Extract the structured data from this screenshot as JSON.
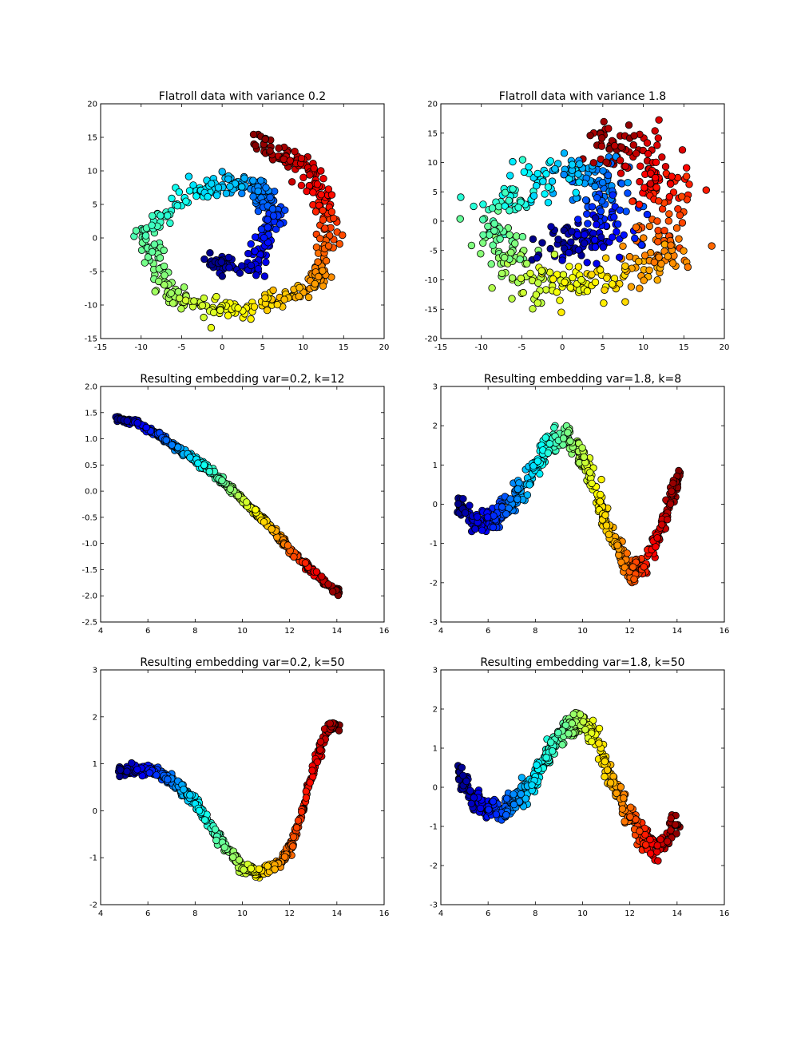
{
  "colormap": "jet",
  "chart_data": [
    {
      "type": "scatter",
      "title": "Flatroll data with variance 0.2",
      "xlabel": "",
      "ylabel": "",
      "xlim": [
        -15,
        20
      ],
      "ylim": [
        -15,
        20
      ],
      "xticks": [
        -15,
        -10,
        -5,
        0,
        5,
        10,
        15,
        20
      ],
      "yticks": [
        -15,
        -10,
        -5,
        0,
        5,
        10,
        15,
        20
      ],
      "color_encoding": "jet colormap along the spiral parameter t (blue = 0 at inner end, red = 1 at outer end)",
      "grid": false,
      "legend": "none",
      "spiral_curve": {
        "t": [
          0,
          0.125,
          0.25,
          0.375,
          0.5,
          0.625,
          0.75,
          0.875,
          1.0
        ],
        "x": [
          -1.5,
          4.0,
          6.5,
          4.0,
          -3.0,
          -9.5,
          -6.0,
          3.0,
          11.5
        ],
        "y": [
          -3.5,
          -4.5,
          3.5,
          8.0,
          7.5,
          0.5,
          -9.5,
          -11.0,
          -7.0
        ],
        "continues_to": {
          "x": [
            13.5,
            11.0,
            4.0
          ],
          "y": [
            2.0,
            10.0,
            14.5
          ]
        }
      },
      "noise_sd": 0.7,
      "n_points": 600
    },
    {
      "type": "scatter",
      "title": "Flatroll data with variance 1.8",
      "xlabel": "",
      "ylabel": "",
      "xlim": [
        -15,
        20
      ],
      "ylim": [
        -20,
        20
      ],
      "xticks": [
        -15,
        -10,
        -5,
        0,
        5,
        10,
        15,
        20
      ],
      "yticks": [
        -20,
        -15,
        -10,
        -5,
        0,
        5,
        10,
        15,
        20
      ],
      "color_encoding": "jet colormap along the spiral parameter t",
      "grid": false,
      "legend": "none",
      "spiral_curve": {
        "t": [
          0,
          0.125,
          0.25,
          0.375,
          0.5,
          0.625,
          0.75,
          0.875,
          1.0
        ],
        "x": [
          -1.5,
          4.0,
          6.5,
          4.0,
          -3.0,
          -9.5,
          -6.0,
          3.0,
          11.5
        ],
        "y": [
          -3.5,
          -4.5,
          3.5,
          8.0,
          7.5,
          0.5,
          -9.5,
          -11.0,
          -7.0
        ],
        "continues_to": {
          "x": [
            13.5,
            11.0,
            4.0
          ],
          "y": [
            2.0,
            10.0,
            14.5
          ]
        }
      },
      "noise_sd": 1.9,
      "n_points": 600
    },
    {
      "type": "scatter",
      "title": "Resulting embedding var=0.2, k=12",
      "xlabel": "",
      "ylabel": "",
      "xlim": [
        4,
        16
      ],
      "ylim": [
        -2.5,
        2.0
      ],
      "xticks": [
        4,
        6,
        8,
        10,
        12,
        14,
        16
      ],
      "yticks": [
        -2.5,
        -2.0,
        -1.5,
        -1.0,
        -0.5,
        0.0,
        0.5,
        1.0,
        1.5,
        2.0
      ],
      "ytick_format": 1,
      "grid": false,
      "legend": "none",
      "x_range": [
        4.7,
        14.1
      ],
      "curve": {
        "x": [
          4.7,
          5.5,
          6.5,
          8.0,
          9.0,
          10.0,
          11.0,
          12.0,
          13.0,
          14.1
        ],
        "y": [
          1.38,
          1.32,
          1.05,
          0.6,
          0.25,
          -0.15,
          -0.6,
          -1.1,
          -1.55,
          -1.95
        ]
      },
      "noise_sd": 0.025,
      "n_points": 600
    },
    {
      "type": "scatter",
      "title": "Resulting embedding var=1.8, k=8",
      "xlabel": "",
      "ylabel": "",
      "xlim": [
        4,
        16
      ],
      "ylim": [
        -3,
        3
      ],
      "xticks": [
        4,
        6,
        8,
        10,
        12,
        14,
        16
      ],
      "yticks": [
        -3,
        -2,
        -1,
        0,
        1,
        2,
        3
      ],
      "grid": false,
      "legend": "none",
      "x_range": [
        4.7,
        14.1
      ],
      "curve": {
        "x": [
          4.7,
          5.2,
          5.8,
          6.5,
          7.2,
          8.0,
          8.7,
          9.3,
          9.9,
          10.5,
          11.2,
          12.0,
          12.6,
          13.2,
          13.7,
          14.1
        ],
        "y": [
          0.0,
          -0.3,
          -0.5,
          -0.3,
          0.2,
          1.0,
          1.6,
          1.75,
          1.3,
          0.4,
          -0.8,
          -1.7,
          -1.6,
          -0.8,
          0.1,
          0.8
        ]
      },
      "noise_sd": 0.15,
      "n_points": 600
    },
    {
      "type": "scatter",
      "title": "Resulting embedding var=0.2, k=50",
      "xlabel": "",
      "ylabel": "",
      "xlim": [
        4,
        16
      ],
      "ylim": [
        -2,
        3
      ],
      "xticks": [
        4,
        6,
        8,
        10,
        12,
        14,
        16
      ],
      "yticks": [
        -2,
        -1,
        0,
        1,
        2,
        3
      ],
      "grid": false,
      "legend": "none",
      "x_range": [
        4.7,
        14.1
      ],
      "curve": {
        "x": [
          4.7,
          5.5,
          6.3,
          7.0,
          8.0,
          9.0,
          10.0,
          10.7,
          11.5,
          12.1,
          12.6,
          13.1,
          13.5,
          13.9,
          14.1
        ],
        "y": [
          0.82,
          0.88,
          0.85,
          0.65,
          0.2,
          -0.6,
          -1.2,
          -1.32,
          -1.15,
          -0.75,
          0.1,
          1.0,
          1.65,
          1.85,
          1.75
        ]
      },
      "noise_sd": 0.05,
      "n_points": 600
    },
    {
      "type": "scatter",
      "title": "Resulting embedding var=1.8, k=50",
      "xlabel": "",
      "ylabel": "",
      "xlim": [
        4,
        16
      ],
      "ylim": [
        -3,
        3
      ],
      "xticks": [
        4,
        6,
        8,
        10,
        12,
        14,
        16
      ],
      "yticks": [
        -3,
        -2,
        -1,
        0,
        1,
        2,
        3
      ],
      "grid": false,
      "legend": "none",
      "x_range": [
        4.7,
        14.1
      ],
      "curve": {
        "x": [
          4.7,
          5.3,
          6.0,
          6.7,
          7.5,
          8.3,
          9.0,
          9.7,
          10.3,
          11.0,
          11.7,
          12.4,
          13.0,
          13.6,
          14.1
        ],
        "y": [
          0.4,
          -0.2,
          -0.55,
          -0.55,
          -0.2,
          0.6,
          1.3,
          1.7,
          1.5,
          0.6,
          -0.4,
          -1.2,
          -1.55,
          -1.35,
          -0.6
        ]
      },
      "noise_sd": 0.15,
      "n_points": 600
    }
  ]
}
